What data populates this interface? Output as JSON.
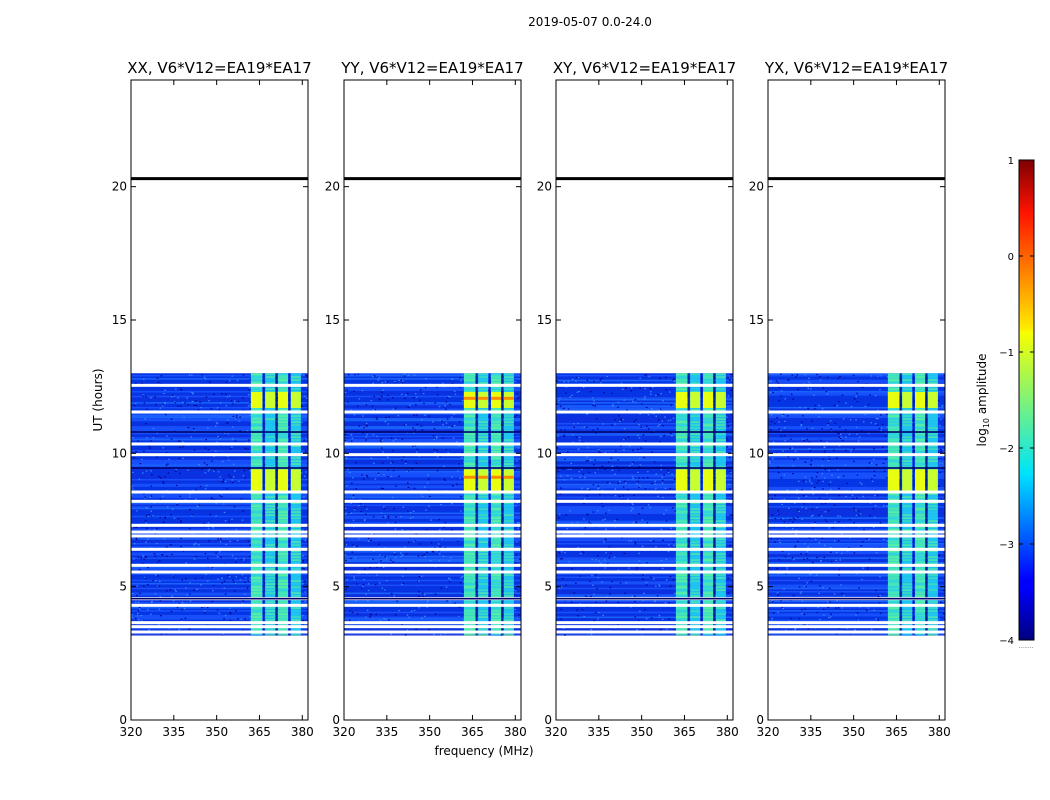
{
  "chart_data": {
    "type": "heatmap",
    "suptitle": "2019-05-07 0.0-24.0",
    "xlabel": "frequency (MHz)",
    "ylabel": "UT (hours)",
    "xlim": [
      320,
      382
    ],
    "ylim": [
      0,
      24
    ],
    "xticks": [
      320,
      335,
      350,
      365,
      380
    ],
    "xtick_labels": [
      "320",
      "335",
      "350",
      "365",
      "380"
    ],
    "yticks": [
      0,
      5,
      10,
      15,
      20
    ],
    "ytick_labels": [
      "0",
      "5",
      "10",
      "15",
      "20"
    ],
    "colorbar": {
      "label_pre": "log",
      "label_sub": "10",
      "label_post": " amplitude",
      "range": [
        -4,
        1
      ],
      "ticks": [
        1,
        0,
        -1,
        -2,
        -3,
        -4
      ],
      "tick_labels": [
        "1",
        "0",
        "−1",
        "−2",
        "−3",
        "−4"
      ],
      "colormap": "jet",
      "extra_label": "........"
    },
    "data_range_hours": [
      3.2,
      13.0
    ],
    "marker_line_hour": 20.3,
    "data_gap_hours": [
      3.3,
      3.5,
      3.65,
      4.3,
      4.55,
      5.55,
      5.8,
      6.4,
      6.9,
      7.05,
      7.3,
      8.2,
      8.55,
      9.95,
      10.35,
      11.55,
      12.55
    ],
    "dark_gap_hours": [
      4.55,
      9.45,
      10.8
    ],
    "panels": [
      {
        "title": "XX, V6*V12=EA19*EA17",
        "polarization": "XX",
        "baseline": "V6*V12=EA19*EA17",
        "rfi_band_mhz": [
          362,
          380
        ],
        "rfi_channels_mhz": [
          [
            362,
            366,
            2
          ],
          [
            367,
            370.5,
            1
          ],
          [
            371.5,
            375,
            2
          ],
          [
            376,
            379.5,
            1
          ]
        ],
        "bright_intervals_hours": [
          [
            8.6,
            9.4
          ],
          [
            11.7,
            12.3
          ]
        ]
      },
      {
        "title": "YY, V6*V12=EA19*EA17",
        "polarization": "YY",
        "baseline": "V6*V12=EA19*EA17",
        "rfi_band_mhz": [
          362,
          380
        ],
        "rfi_channels_mhz": [
          [
            362,
            366,
            2
          ],
          [
            367,
            370.5,
            1
          ],
          [
            371.5,
            375,
            2
          ],
          [
            376,
            379.5,
            1
          ]
        ],
        "bright_intervals_hours": [
          [
            8.6,
            9.4
          ],
          [
            11.7,
            12.3
          ]
        ]
      },
      {
        "title": "XY, V6*V12=EA19*EA17",
        "polarization": "XY",
        "baseline": "V6*V12=EA19*EA17",
        "rfi_band_mhz": [
          362,
          380
        ],
        "rfi_channels_mhz": [
          [
            362,
            366,
            2
          ],
          [
            367,
            370.5,
            1
          ],
          [
            371.5,
            375,
            2
          ],
          [
            376,
            379.5,
            1
          ]
        ],
        "bright_intervals_hours": [
          [
            8.6,
            9.4
          ],
          [
            11.7,
            12.3
          ]
        ]
      },
      {
        "title": "YX, V6*V12=EA19*EA17",
        "polarization": "YX",
        "baseline": "V6*V12=EA19*EA17",
        "rfi_band_mhz": [
          362,
          380
        ],
        "rfi_channels_mhz": [
          [
            362,
            366,
            2
          ],
          [
            367,
            370.5,
            1
          ],
          [
            371.5,
            375,
            2
          ],
          [
            376,
            379.5,
            1
          ]
        ],
        "bright_intervals_hours": [
          [
            8.6,
            9.4
          ],
          [
            11.7,
            12.3
          ]
        ]
      }
    ]
  }
}
